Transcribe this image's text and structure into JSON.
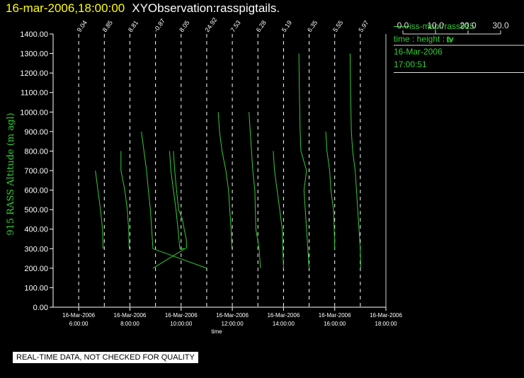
{
  "title": {
    "timestamp": "16-mar-2006,18:00:00",
    "observation": "XYObservation:rasspigtails."
  },
  "legend": {
    "series": "iss-mapr/rass915",
    "fields": "time : height : tv",
    "date": "16-Mar-2006",
    "time": "17:00:51",
    "colorbar_ticks": [
      "0.0",
      "10.0",
      "20.0",
      "30.0"
    ],
    "colorbar_label": "tv"
  },
  "footer": "REAL-TIME DATA, NOT CHECKED FOR QUALITY",
  "chart_data": {
    "type": "line",
    "xlabel": "time",
    "ylabel": "915 RASS Altitude (m agl)",
    "xlim": [
      5.0,
      18.0
    ],
    "ylim": [
      0,
      1400
    ],
    "y_ticks": [
      "0.00",
      "100.00",
      "200.00",
      "300.00",
      "400.00",
      "500.00",
      "600.00",
      "700.00",
      "800.00",
      "900.00",
      "1000.00",
      "1100.00",
      "1200.00",
      "1300.00",
      "1400.00"
    ],
    "x_ticks": [
      {
        "x": 6,
        "date": "16-Mar-2006",
        "time": "6:00:00"
      },
      {
        "x": 8,
        "date": "16-Mar-2006",
        "time": "8:00:00"
      },
      {
        "x": 10,
        "date": "16-Mar-2006",
        "time": "10:00:00"
      },
      {
        "x": 12,
        "date": "16-Mar-2006",
        "time": "12:00:00"
      },
      {
        "x": 14,
        "date": "16-Mar-2006",
        "time": "14:00:00"
      },
      {
        "x": 16,
        "date": "16-Mar-2006",
        "time": "16:00:00"
      },
      {
        "x": 18,
        "date": "16-Mar-2006",
        "time": "18:00:00"
      }
    ],
    "reference_lines": [
      {
        "x": 6,
        "label": "9.04"
      },
      {
        "x": 7,
        "label": "8.85"
      },
      {
        "x": 8,
        "label": "8.81"
      },
      {
        "x": 9,
        "label": "-0.87"
      },
      {
        "x": 10,
        "label": "8.05"
      },
      {
        "x": 11,
        "label": "24.92"
      },
      {
        "x": 12,
        "label": "7.53"
      },
      {
        "x": 13,
        "label": "6.28"
      },
      {
        "x": 14,
        "label": "5.19"
      },
      {
        "x": 15,
        "label": "6.35"
      },
      {
        "x": 16,
        "label": "5.55"
      },
      {
        "x": 17,
        "label": "5.97"
      }
    ],
    "series": [
      {
        "points": [
          [
            6.65,
            700
          ],
          [
            6.75,
            600
          ],
          [
            6.85,
            500
          ],
          [
            6.93,
            400
          ],
          [
            6.95,
            300
          ]
        ]
      },
      {
        "points": [
          [
            7.65,
            800
          ],
          [
            7.65,
            700
          ],
          [
            7.8,
            600
          ],
          [
            7.9,
            500
          ],
          [
            7.95,
            400
          ],
          [
            7.97,
            300
          ]
        ]
      },
      {
        "points": [
          [
            8.45,
            900
          ],
          [
            8.55,
            800
          ],
          [
            8.65,
            700
          ],
          [
            8.72,
            600
          ],
          [
            8.8,
            500
          ],
          [
            8.85,
            400
          ],
          [
            8.9,
            300
          ],
          [
            11.0,
            200
          ]
        ]
      },
      {
        "points": [
          [
            9.55,
            800
          ],
          [
            9.6,
            700
          ],
          [
            9.7,
            600
          ],
          [
            9.8,
            500
          ],
          [
            9.88,
            400
          ],
          [
            9.95,
            300
          ],
          [
            10.05,
            300
          ],
          [
            10.15,
            300
          ],
          [
            8.9,
            200
          ]
        ]
      },
      {
        "points": [
          [
            9.7,
            800
          ],
          [
            9.75,
            700
          ],
          [
            9.82,
            600
          ],
          [
            9.9,
            500
          ],
          [
            10.05,
            450
          ],
          [
            10.12,
            400
          ],
          [
            10.2,
            350
          ],
          [
            10.22,
            300
          ]
        ]
      },
      {
        "points": [
          [
            11.45,
            1000
          ],
          [
            11.5,
            900
          ],
          [
            11.6,
            800
          ],
          [
            11.75,
            700
          ],
          [
            11.85,
            600
          ],
          [
            11.9,
            500
          ],
          [
            11.95,
            400
          ],
          [
            11.98,
            300
          ]
        ]
      },
      {
        "points": [
          [
            12.65,
            1000
          ],
          [
            12.7,
            900
          ],
          [
            12.75,
            800
          ],
          [
            12.8,
            700
          ],
          [
            12.88,
            600
          ],
          [
            12.9,
            500
          ],
          [
            12.92,
            400
          ],
          [
            13.05,
            300
          ],
          [
            13.1,
            200
          ]
        ]
      },
      {
        "points": [
          [
            13.6,
            800
          ],
          [
            13.65,
            700
          ],
          [
            13.75,
            600
          ],
          [
            13.85,
            500
          ],
          [
            13.95,
            400
          ],
          [
            13.97,
            300
          ],
          [
            14.0,
            200
          ]
        ]
      },
      {
        "points": [
          [
            14.6,
            1300
          ],
          [
            14.62,
            1100
          ],
          [
            14.65,
            900
          ],
          [
            14.68,
            800
          ],
          [
            14.9,
            700
          ],
          [
            14.8,
            600
          ],
          [
            14.85,
            500
          ],
          [
            14.9,
            400
          ],
          [
            14.95,
            300
          ],
          [
            15.0,
            200
          ]
        ]
      },
      {
        "points": [
          [
            15.65,
            900
          ],
          [
            15.7,
            800
          ],
          [
            15.8,
            700
          ],
          [
            15.85,
            600
          ],
          [
            15.95,
            500
          ],
          [
            15.98,
            400
          ],
          [
            16.0,
            300
          ]
        ]
      },
      {
        "points": [
          [
            16.6,
            1300
          ],
          [
            16.62,
            1100
          ],
          [
            16.65,
            900
          ],
          [
            16.7,
            800
          ],
          [
            16.8,
            700
          ],
          [
            16.85,
            600
          ],
          [
            16.9,
            500
          ],
          [
            16.95,
            400
          ],
          [
            17.0,
            300
          ],
          [
            17.02,
            200
          ]
        ]
      }
    ]
  }
}
